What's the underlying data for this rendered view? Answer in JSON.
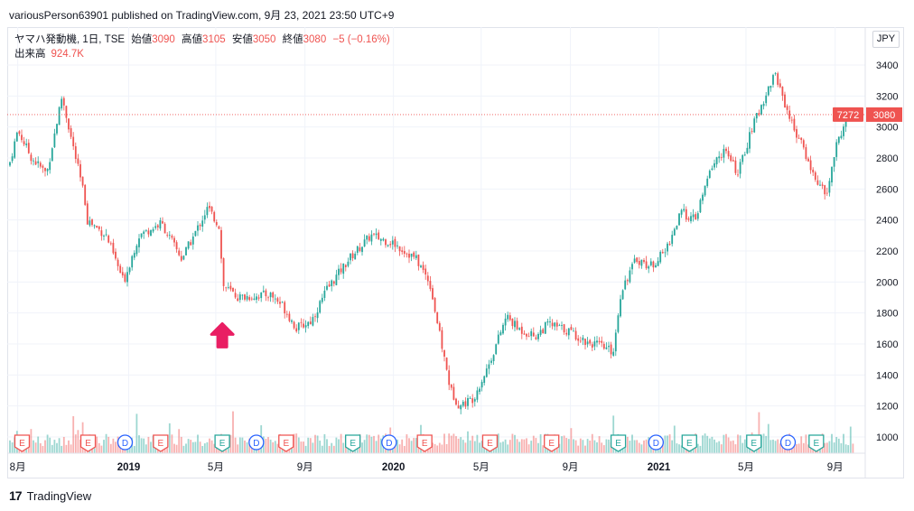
{
  "header": {
    "published_text": "variousPerson63901 published on TradingView.com, 9月 23, 2021 23:50 UTC+9"
  },
  "legend": {
    "symbol": "ヤマハ発動機, 1日, TSE",
    "open_label": "始値",
    "open": "3090",
    "high_label": "高値",
    "high": "3105",
    "low_label": "安値",
    "low": "3050",
    "close_label": "終値",
    "close": "3080",
    "change": "−5 (−0.16%)",
    "volume_label": "出来高",
    "volume": "924.7K"
  },
  "currency_button": "JPY",
  "last_price_tag": "3080",
  "countdown_tag": "7272",
  "footer": {
    "brand": "TradingView"
  },
  "colors": {
    "up": "#26a69a",
    "down": "#ef5350",
    "arrow": "#e91e63",
    "dividend": "#2962ff"
  },
  "chart_data": {
    "type": "candlestick",
    "price_axis": {
      "ticks": [
        1000,
        1200,
        1400,
        1600,
        1800,
        2000,
        2200,
        2400,
        2600,
        2800,
        3000,
        3200,
        3400
      ],
      "range": [
        900,
        3500
      ]
    },
    "time_axis": {
      "labels": [
        "8月",
        "2019",
        "5月",
        "9月",
        "2020",
        "5月",
        "9月",
        "2021",
        "5月",
        "9月"
      ],
      "bold": [
        "2019",
        "2020",
        "2021"
      ],
      "range": [
        "2018-07-20",
        "2021-09-30"
      ]
    },
    "close_path": [
      [
        "2018-07-20",
        2750
      ],
      [
        "2018-08-01",
        2980
      ],
      [
        "2018-08-20",
        2800
      ],
      [
        "2018-09-10",
        2700
      ],
      [
        "2018-10-01",
        3200
      ],
      [
        "2018-10-15",
        2900
      ],
      [
        "2018-11-01",
        2550
      ],
      [
        "2018-11-05",
        2400
      ],
      [
        "2018-12-01",
        2300
      ],
      [
        "2018-12-25",
        2000
      ],
      [
        "2019-01-15",
        2300
      ],
      [
        "2019-02-15",
        2380
      ],
      [
        "2019-03-15",
        2150
      ],
      [
        "2019-04-01",
        2300
      ],
      [
        "2019-04-20",
        2480
      ],
      [
        "2019-05-07",
        2350
      ],
      [
        "2019-05-10",
        1980
      ],
      [
        "2019-06-01",
        1900
      ],
      [
        "2019-07-15",
        1920
      ],
      [
        "2019-08-01",
        1850
      ],
      [
        "2019-08-20",
        1700
      ],
      [
        "2019-09-10",
        1750
      ],
      [
        "2019-10-01",
        1950
      ],
      [
        "2019-11-01",
        2150
      ],
      [
        "2019-12-01",
        2300
      ],
      [
        "2020-01-01",
        2250
      ],
      [
        "2020-02-01",
        2150
      ],
      [
        "2020-02-20",
        2000
      ],
      [
        "2020-03-05",
        1650
      ],
      [
        "2020-03-20",
        1300
      ],
      [
        "2020-04-01",
        1200
      ],
      [
        "2020-04-20",
        1250
      ],
      [
        "2020-05-10",
        1450
      ],
      [
        "2020-06-05",
        1780
      ],
      [
        "2020-06-20",
        1700
      ],
      [
        "2020-07-15",
        1650
      ],
      [
        "2020-08-01",
        1730
      ],
      [
        "2020-09-01",
        1680
      ],
      [
        "2020-09-20",
        1620
      ],
      [
        "2020-10-05",
        1600
      ],
      [
        "2020-10-30",
        1550
      ],
      [
        "2020-11-10",
        1950
      ],
      [
        "2020-12-01",
        2150
      ],
      [
        "2020-12-20",
        2100
      ],
      [
        "2021-01-10",
        2200
      ],
      [
        "2021-02-01",
        2450
      ],
      [
        "2021-02-20",
        2400
      ],
      [
        "2021-03-15",
        2750
      ],
      [
        "2021-04-01",
        2850
      ],
      [
        "2021-04-20",
        2700
      ],
      [
        "2021-05-10",
        3000
      ],
      [
        "2021-06-01",
        3250
      ],
      [
        "2021-06-10",
        3350
      ],
      [
        "2021-07-01",
        3050
      ],
      [
        "2021-07-20",
        2850
      ],
      [
        "2021-08-01",
        2700
      ],
      [
        "2021-08-20",
        2550
      ],
      [
        "2021-09-01",
        2850
      ],
      [
        "2021-09-15",
        3050
      ],
      [
        "2021-09-24",
        3080
      ]
    ],
    "last_close": 3080,
    "events": [
      {
        "type": "E",
        "date": "2018-08-07"
      },
      {
        "type": "E",
        "date": "2018-11-06"
      },
      {
        "type": "D",
        "date": "2018-12-27"
      },
      {
        "type": "E",
        "date": "2019-02-14"
      },
      {
        "type": "E",
        "date": "2019-05-10"
      },
      {
        "type": "D",
        "date": "2019-06-26"
      },
      {
        "type": "E",
        "date": "2019-08-06"
      },
      {
        "type": "E",
        "date": "2019-11-06"
      },
      {
        "type": "D",
        "date": "2019-12-26"
      },
      {
        "type": "E",
        "date": "2020-02-13"
      },
      {
        "type": "E",
        "date": "2020-05-13"
      },
      {
        "type": "E",
        "date": "2020-08-06"
      },
      {
        "type": "E",
        "date": "2020-11-06"
      },
      {
        "type": "D",
        "date": "2020-12-28"
      },
      {
        "type": "E",
        "date": "2021-02-12"
      },
      {
        "type": "E",
        "date": "2021-05-12"
      },
      {
        "type": "D",
        "date": "2021-06-28"
      },
      {
        "type": "E",
        "date": "2021-08-06"
      }
    ],
    "annotation": {
      "type": "up-arrow",
      "date": "2019-05-10",
      "price": 1650
    }
  }
}
